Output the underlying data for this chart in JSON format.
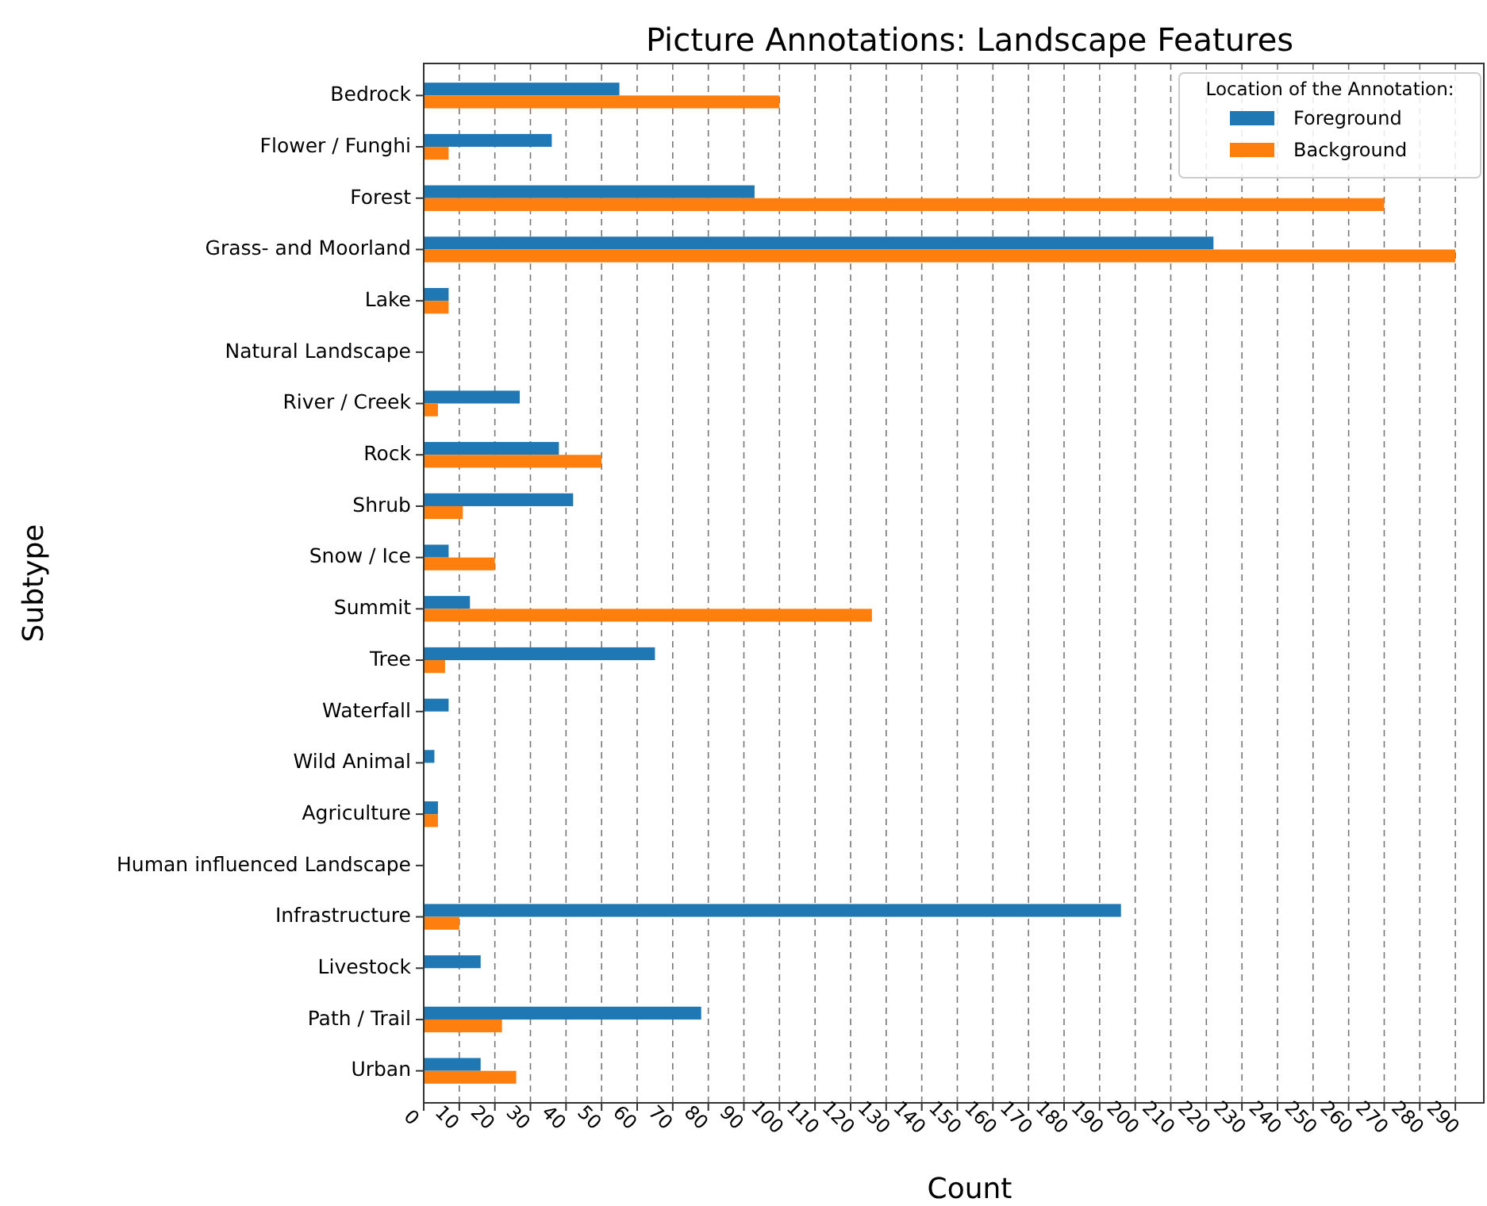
{
  "chart_data": {
    "type": "bar",
    "orientation": "horizontal",
    "title": "Picture Annotations: Landscape Features",
    "xlabel": "Count",
    "ylabel": "Subtype",
    "legend_title": "Location of the Annotation:",
    "legend": "top right",
    "grid": "x",
    "categories": [
      "Bedrock",
      "Flower / Funghi",
      "Forest",
      "Grass- and Moorland",
      "Lake",
      "Natural Landscape",
      "River / Creek",
      "Rock",
      "Shrub",
      "Snow / Ice",
      "Summit",
      "Tree",
      "Waterfall",
      "Wild Animal",
      "Agriculture",
      "Human influenced Landscape",
      "Infrastructure",
      "Livestock",
      "Path / Trail",
      "Urban"
    ],
    "series": [
      {
        "name": "Foreground",
        "color": "#1f77b4",
        "values": [
          55,
          36,
          93,
          222,
          7,
          0,
          27,
          38,
          42,
          7,
          13,
          65,
          7,
          3,
          4,
          0,
          196,
          16,
          78,
          16
        ]
      },
      {
        "name": "Background",
        "color": "#ff7f0e",
        "values": [
          100,
          7,
          270,
          290,
          7,
          0,
          4,
          50,
          11,
          20,
          126,
          6,
          0,
          0,
          4,
          0,
          10,
          0,
          22,
          26
        ]
      }
    ],
    "xlim": [
      0,
      298
    ],
    "xticks": [
      0,
      10,
      20,
      30,
      40,
      50,
      60,
      70,
      80,
      90,
      100,
      110,
      120,
      130,
      140,
      150,
      160,
      170,
      180,
      190,
      200,
      210,
      220,
      230,
      240,
      250,
      260,
      270,
      280,
      290
    ]
  }
}
